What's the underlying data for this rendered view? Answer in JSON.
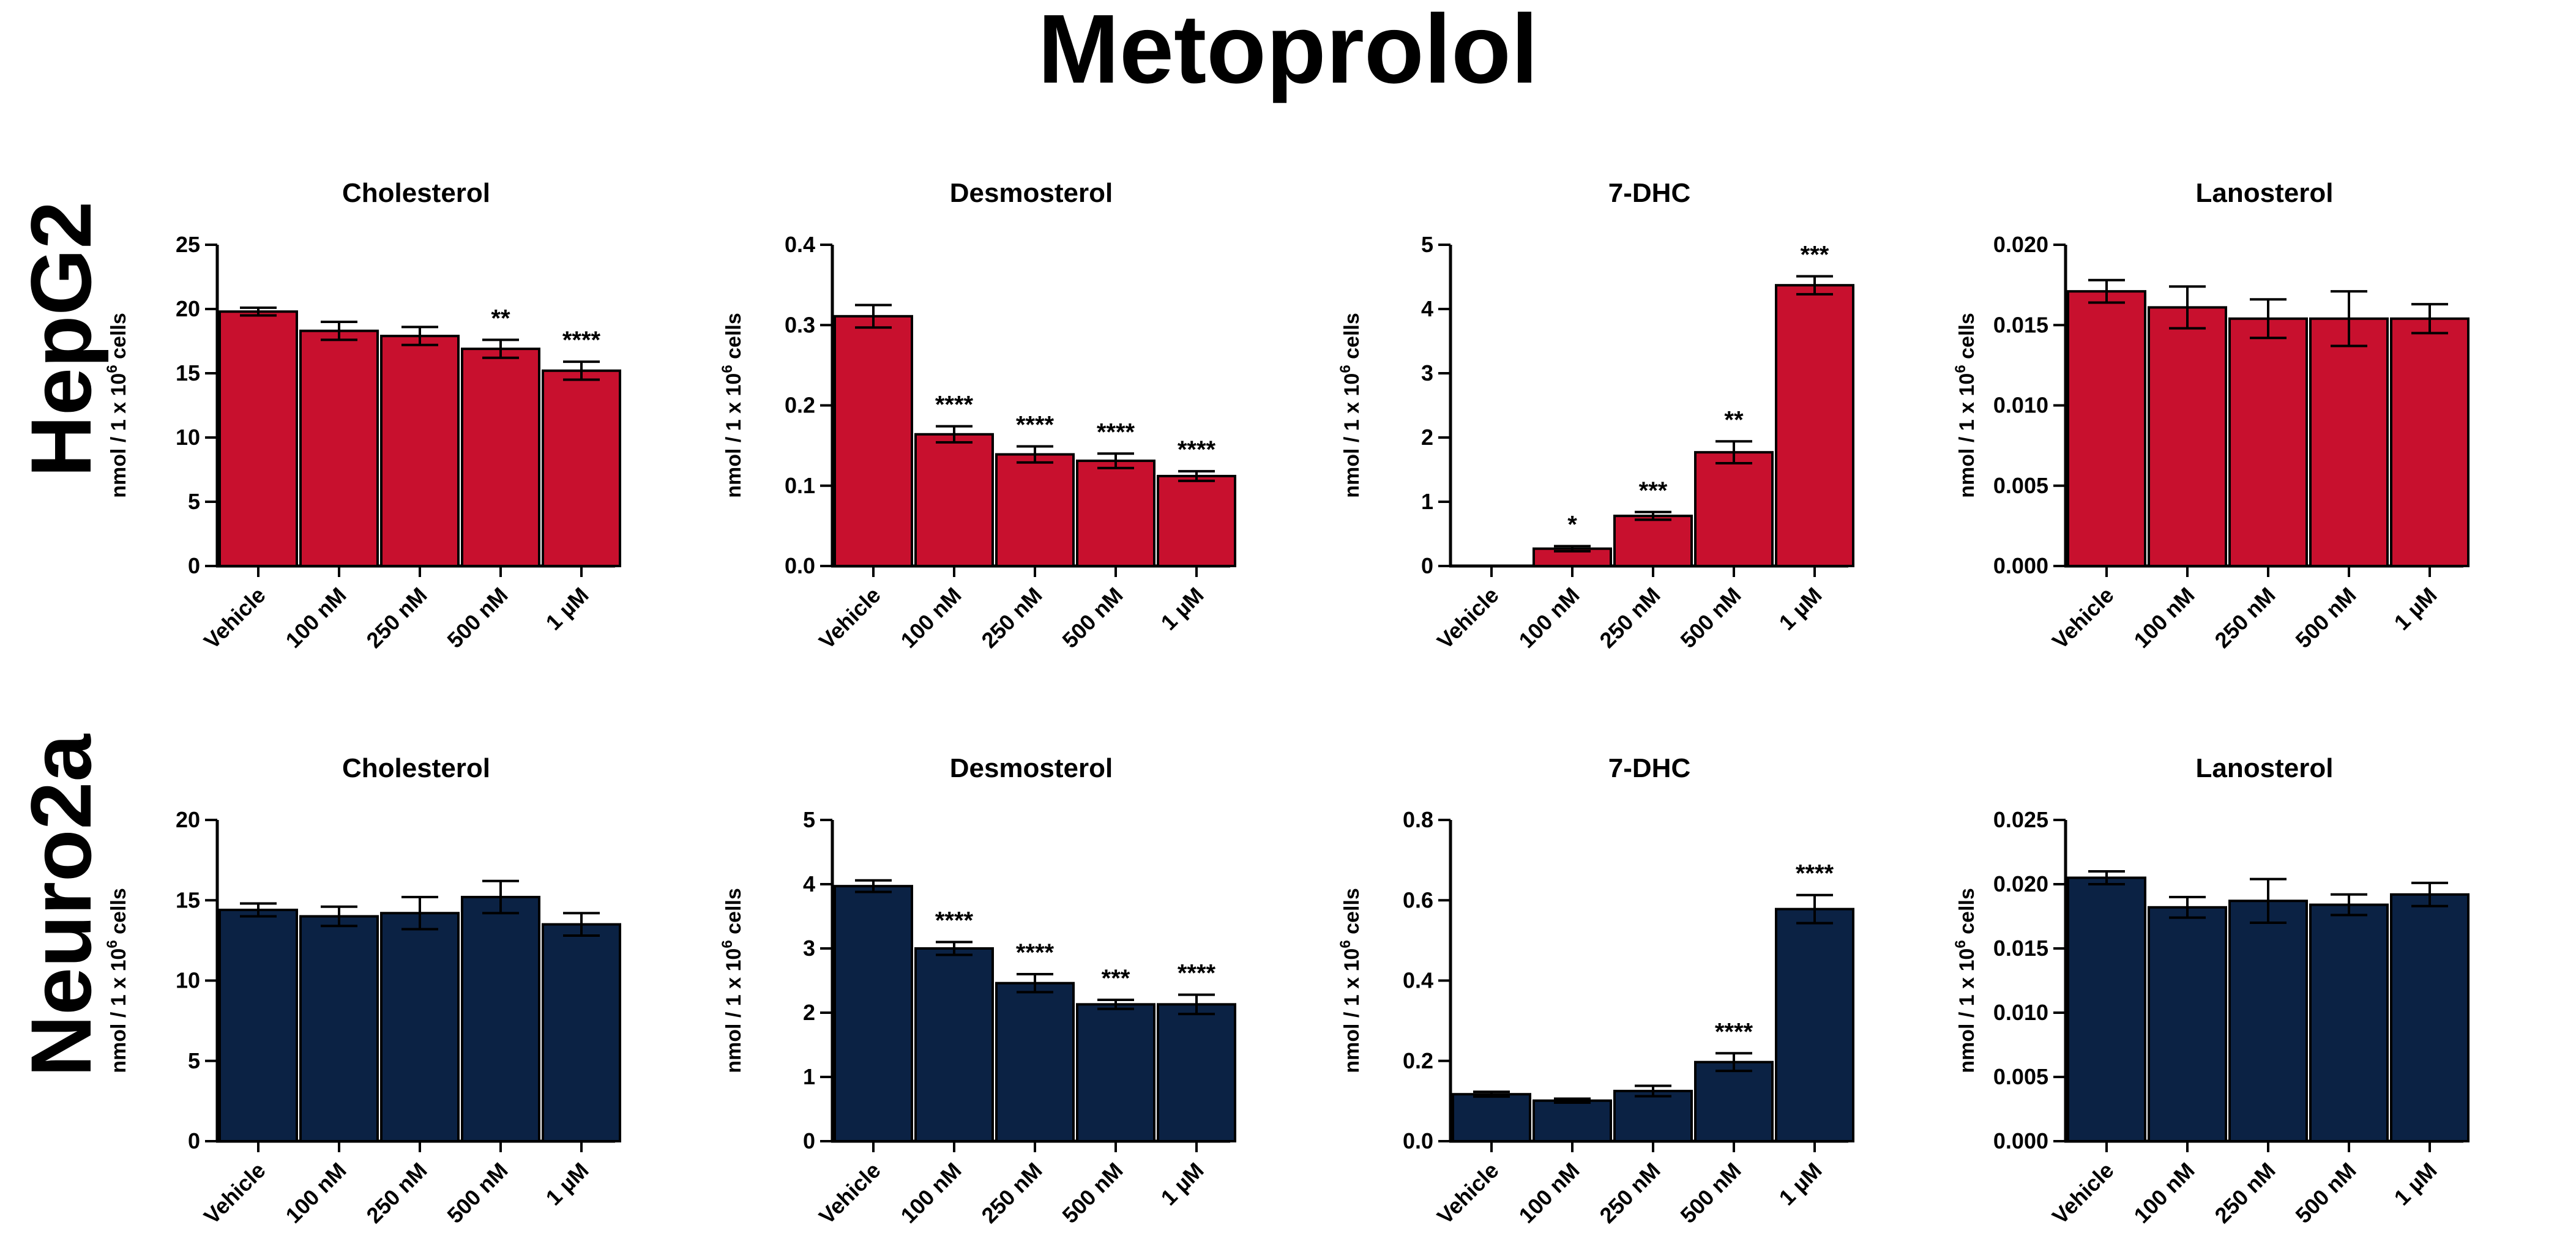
{
  "title": "Metoprolol",
  "row_labels": [
    "HepG2",
    "Neuro2a"
  ],
  "y_axis_label_prefix": "nmol / 1 x 10",
  "y_axis_label_exp": "6",
  "y_axis_label_suffix": " cells",
  "colors": {
    "HepG2": "#c8102e",
    "Neuro2a": "#0b2244",
    "axis": "#000000"
  },
  "chart_data": [
    {
      "type": "bar",
      "row": "HepG2",
      "title": "Cholesterol",
      "categories": [
        "Vehicle",
        "100 nM",
        "250 nM",
        "500 nM",
        "1 µM"
      ],
      "values": [
        19.8,
        18.3,
        17.9,
        16.9,
        15.2
      ],
      "errors": [
        0.3,
        0.7,
        0.7,
        0.7,
        0.7
      ],
      "significance": [
        "",
        "",
        "",
        "**",
        "****"
      ],
      "ylim": [
        0,
        25
      ],
      "yticks": [
        "0",
        "5",
        "10",
        "15",
        "20",
        "25"
      ]
    },
    {
      "type": "bar",
      "row": "HepG2",
      "title": "Desmosterol",
      "categories": [
        "Vehicle",
        "100 nM",
        "250 nM",
        "500 nM",
        "1 µM"
      ],
      "values": [
        0.311,
        0.164,
        0.139,
        0.131,
        0.112
      ],
      "errors": [
        0.014,
        0.01,
        0.01,
        0.009,
        0.006
      ],
      "significance": [
        "",
        "****",
        "****",
        "****",
        "****"
      ],
      "ylim": [
        0,
        0.4
      ],
      "yticks": [
        "0.0",
        "0.1",
        "0.2",
        "0.3",
        "0.4"
      ]
    },
    {
      "type": "bar",
      "row": "HepG2",
      "title": "7-DHC",
      "categories": [
        "Vehicle",
        "100 nM",
        "250 nM",
        "500 nM",
        "1 µM"
      ],
      "values": [
        0,
        0.27,
        0.78,
        1.77,
        4.37
      ],
      "errors": [
        0,
        0.04,
        0.06,
        0.17,
        0.14
      ],
      "significance": [
        "",
        "*",
        "***",
        "**",
        "***"
      ],
      "ylim": [
        0,
        5
      ],
      "yticks": [
        "0",
        "1",
        "2",
        "3",
        "4",
        "5"
      ]
    },
    {
      "type": "bar",
      "row": "HepG2",
      "title": "Lanosterol",
      "categories": [
        "Vehicle",
        "100 nM",
        "250 nM",
        "500 nM",
        "1 µM"
      ],
      "values": [
        0.0171,
        0.0161,
        0.0154,
        0.0154,
        0.0154
      ],
      "errors": [
        0.0007,
        0.0013,
        0.0012,
        0.0017,
        0.0009
      ],
      "significance": [
        "",
        "",
        "",
        "",
        ""
      ],
      "ylim": [
        0,
        0.02
      ],
      "yticks": [
        "0.000",
        "0.005",
        "0.010",
        "0.015",
        "0.020"
      ]
    },
    {
      "type": "bar",
      "row": "Neuro2a",
      "title": "Cholesterol",
      "categories": [
        "Vehicle",
        "100 nM",
        "250 nM",
        "500 nM",
        "1 µM"
      ],
      "values": [
        14.4,
        14.0,
        14.2,
        15.2,
        13.5
      ],
      "errors": [
        0.4,
        0.6,
        1.0,
        1.0,
        0.7
      ],
      "significance": [
        "",
        "",
        "",
        "",
        ""
      ],
      "ylim": [
        0,
        20
      ],
      "yticks": [
        "0",
        "5",
        "10",
        "15",
        "20"
      ]
    },
    {
      "type": "bar",
      "row": "Neuro2a",
      "title": "Desmosterol",
      "categories": [
        "Vehicle",
        "100 nM",
        "250 nM",
        "500 nM",
        "1 µM"
      ],
      "values": [
        3.97,
        3.0,
        2.46,
        2.13,
        2.13
      ],
      "errors": [
        0.09,
        0.1,
        0.14,
        0.07,
        0.15
      ],
      "significance": [
        "",
        "****",
        "****",
        "***",
        "****"
      ],
      "ylim": [
        0,
        5
      ],
      "yticks": [
        "0",
        "1",
        "2",
        "3",
        "4",
        "5"
      ]
    },
    {
      "type": "bar",
      "row": "Neuro2a",
      "title": "7-DHC",
      "categories": [
        "Vehicle",
        "100 nM",
        "250 nM",
        "500 nM",
        "1 µM"
      ],
      "values": [
        0.117,
        0.101,
        0.125,
        0.197,
        0.578
      ],
      "errors": [
        0.006,
        0.005,
        0.013,
        0.022,
        0.035
      ],
      "significance": [
        "",
        "",
        "",
        "****",
        "****"
      ],
      "ylim": [
        0,
        0.8
      ],
      "yticks": [
        "0.0",
        "0.2",
        "0.4",
        "0.6",
        "0.8"
      ]
    },
    {
      "type": "bar",
      "row": "Neuro2a",
      "title": "Lanosterol",
      "categories": [
        "Vehicle",
        "100 nM",
        "250 nM",
        "500 nM",
        "1 µM"
      ],
      "values": [
        0.0205,
        0.0182,
        0.0187,
        0.0184,
        0.0192
      ],
      "errors": [
        0.0005,
        0.0008,
        0.0017,
        0.0008,
        0.0009
      ],
      "significance": [
        "",
        "",
        "",
        "",
        ""
      ],
      "ylim": [
        0,
        0.025
      ],
      "yticks": [
        "0.000",
        "0.005",
        "0.010",
        "0.015",
        "0.020",
        "0.025"
      ]
    }
  ]
}
